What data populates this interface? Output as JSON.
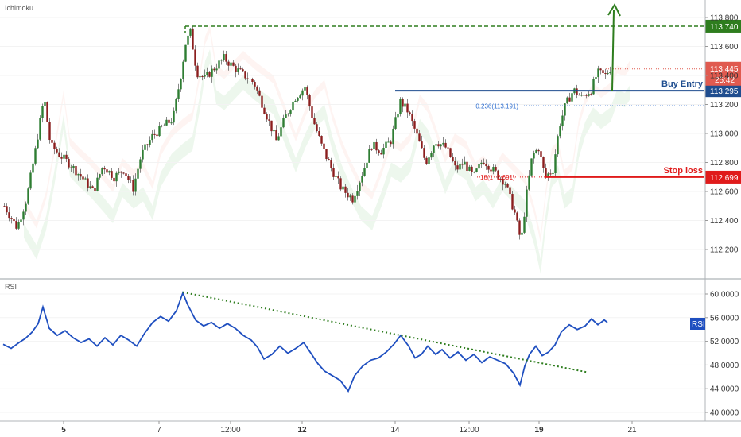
{
  "chart_data": [
    {
      "type": "candlestick",
      "title": "Ichimoku",
      "ylim": [
        112.1,
        113.92
      ],
      "yticks": [
        "113.800",
        "113.600",
        "113.400",
        "113.200",
        "113.000",
        "112.800",
        "112.600",
        "112.400",
        "112.200"
      ],
      "xtick_labels": [
        "5",
        "7",
        "12:00",
        "12",
        "14",
        "12:00",
        "19",
        "21"
      ],
      "xtick_bold": [
        "5",
        "12",
        "19"
      ],
      "price_path": [
        [
          0,
          112.5
        ],
        [
          16,
          112.35
        ],
        [
          28,
          112.55
        ],
        [
          38,
          112.85
        ],
        [
          50,
          113.25
        ],
        [
          58,
          112.92
        ],
        [
          70,
          112.85
        ],
        [
          84,
          112.78
        ],
        [
          100,
          112.68
        ],
        [
          112,
          112.6
        ],
        [
          124,
          112.78
        ],
        [
          138,
          112.7
        ],
        [
          150,
          112.75
        ],
        [
          162,
          112.62
        ],
        [
          172,
          112.85
        ],
        [
          186,
          112.98
        ],
        [
          200,
          113.05
        ],
        [
          212,
          113.1
        ],
        [
          222,
          113.4
        ],
        [
          228,
          113.62
        ],
        [
          234,
          113.7
        ],
        [
          242,
          113.42
        ],
        [
          252,
          113.38
        ],
        [
          264,
          113.45
        ],
        [
          276,
          113.52
        ],
        [
          290,
          113.45
        ],
        [
          302,
          113.4
        ],
        [
          314,
          113.35
        ],
        [
          328,
          113.15
        ],
        [
          342,
          112.95
        ],
        [
          354,
          113.12
        ],
        [
          366,
          113.25
        ],
        [
          378,
          113.32
        ],
        [
          388,
          113.1
        ],
        [
          400,
          112.9
        ],
        [
          412,
          112.75
        ],
        [
          424,
          112.62
        ],
        [
          438,
          112.55
        ],
        [
          450,
          112.72
        ],
        [
          462,
          112.92
        ],
        [
          474,
          112.88
        ],
        [
          486,
          112.95
        ],
        [
          498,
          113.22
        ],
        [
          508,
          113.15
        ],
        [
          518,
          113.0
        ],
        [
          530,
          112.8
        ],
        [
          542,
          112.95
        ],
        [
          556,
          112.9
        ],
        [
          568,
          112.75
        ],
        [
          578,
          112.8
        ],
        [
          590,
          112.7
        ],
        [
          602,
          112.82
        ],
        [
          616,
          112.74
        ],
        [
          630,
          112.66
        ],
        [
          642,
          112.45
        ],
        [
          650,
          112.25
        ],
        [
          656,
          112.55
        ],
        [
          664,
          112.85
        ],
        [
          672,
          112.9
        ],
        [
          680,
          112.7
        ],
        [
          690,
          112.75
        ],
        [
          698,
          113.05
        ],
        [
          706,
          113.2
        ],
        [
          716,
          113.3
        ],
        [
          726,
          113.25
        ],
        [
          738,
          113.3
        ],
        [
          746,
          113.42
        ],
        [
          756,
          113.4
        ],
        [
          762,
          113.45
        ]
      ],
      "lines": [
        {
          "name": "target",
          "label": "113.740",
          "value": 113.74,
          "color": "#2e7d1e",
          "style": "dashed"
        },
        {
          "name": "buy-entry",
          "label": "Buy Entry",
          "price_label": "113.295",
          "value": 113.295,
          "color": "#1f4d8f",
          "style": "solid"
        },
        {
          "name": "fib-0236",
          "label": "0.236(113.191)",
          "value": 113.191,
          "color": "#2f6fd0",
          "style": "dotted"
        },
        {
          "name": "stop-loss",
          "label": "Stop loss",
          "price_label": "112.699",
          "value": 112.699,
          "color": "#e01b1b",
          "style": "solid"
        }
      ],
      "stop_loss_partial_label": "18(1",
      "stop_loss_partial_label_2": "2.691)",
      "last_price": {
        "label": "113.445",
        "value": 113.445,
        "color": "#e05a4f"
      },
      "countdown": "25:42"
    },
    {
      "type": "line",
      "title": "RSI",
      "ylim": [
        39.5,
        61.5
      ],
      "yticks": [
        "60.0000",
        "56.0000",
        "52.0000",
        "48.0000",
        "44.0000",
        "40.0000"
      ],
      "badge": "RSI",
      "trendline": {
        "from": 60.3,
        "to": 46.8,
        "color": "#2e7d1e"
      },
      "series": [
        {
          "values": [
            [
              0,
              51.5
            ],
            [
              10,
              50.8
            ],
            [
              20,
              51.8
            ],
            [
              28,
              52.5
            ],
            [
              36,
              53.5
            ],
            [
              44,
              55.0
            ],
            [
              50,
              57.8
            ],
            [
              58,
              54.2
            ],
            [
              68,
              53.0
            ],
            [
              78,
              53.8
            ],
            [
              88,
              52.6
            ],
            [
              98,
              51.8
            ],
            [
              108,
              52.4
            ],
            [
              118,
              51.2
            ],
            [
              128,
              52.6
            ],
            [
              138,
              51.4
            ],
            [
              148,
              53.0
            ],
            [
              158,
              52.2
            ],
            [
              168,
              51.2
            ],
            [
              178,
              53.4
            ],
            [
              188,
              55.2
            ],
            [
              198,
              56.2
            ],
            [
              208,
              55.4
            ],
            [
              218,
              57.2
            ],
            [
              226,
              60.2
            ],
            [
              232,
              58.2
            ],
            [
              242,
              55.6
            ],
            [
              252,
              54.6
            ],
            [
              262,
              55.2
            ],
            [
              272,
              54.2
            ],
            [
              282,
              55.0
            ],
            [
              292,
              54.2
            ],
            [
              302,
              53.0
            ],
            [
              312,
              52.2
            ],
            [
              320,
              51.0
            ],
            [
              328,
              49.0
            ],
            [
              338,
              49.8
            ],
            [
              348,
              51.2
            ],
            [
              358,
              50.0
            ],
            [
              368,
              50.8
            ],
            [
              378,
              51.8
            ],
            [
              386,
              50.2
            ],
            [
              396,
              48.2
            ],
            [
              404,
              47.0
            ],
            [
              414,
              46.2
            ],
            [
              424,
              45.4
            ],
            [
              434,
              43.6
            ],
            [
              442,
              46.2
            ],
            [
              452,
              47.8
            ],
            [
              462,
              48.8
            ],
            [
              472,
              49.2
            ],
            [
              482,
              50.2
            ],
            [
              492,
              51.6
            ],
            [
              500,
              53.0
            ],
            [
              510,
              51.2
            ],
            [
              518,
              49.2
            ],
            [
              526,
              49.8
            ],
            [
              534,
              51.2
            ],
            [
              544,
              49.8
            ],
            [
              552,
              50.6
            ],
            [
              562,
              49.2
            ],
            [
              572,
              50.2
            ],
            [
              582,
              48.8
            ],
            [
              592,
              49.8
            ],
            [
              602,
              48.4
            ],
            [
              612,
              49.4
            ],
            [
              622,
              48.8
            ],
            [
              632,
              48.2
            ],
            [
              642,
              46.6
            ],
            [
              650,
              44.6
            ],
            [
              656,
              47.8
            ],
            [
              662,
              49.8
            ],
            [
              670,
              51.2
            ],
            [
              678,
              49.6
            ],
            [
              686,
              50.2
            ],
            [
              694,
              51.4
            ],
            [
              702,
              53.6
            ],
            [
              712,
              54.8
            ],
            [
              722,
              54.0
            ],
            [
              732,
              54.6
            ],
            [
              740,
              55.8
            ],
            [
              748,
              54.8
            ],
            [
              756,
              55.6
            ],
            [
              760,
              55.2
            ]
          ]
        }
      ]
    }
  ]
}
